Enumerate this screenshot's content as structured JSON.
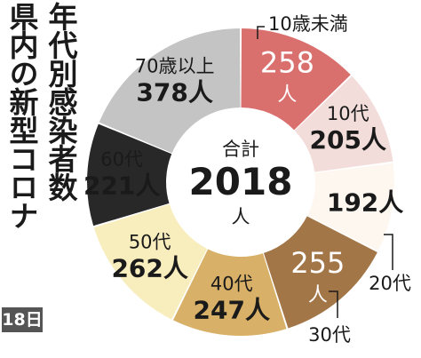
{
  "title_line1": "県内の新型コロナ",
  "title_line2": "年代別感染者数",
  "date_badge": "18日",
  "chart_data": {
    "type": "pie",
    "donut": true,
    "center_label": "合計",
    "center_value": "2018",
    "center_unit": "人",
    "total": 2018,
    "unit": "人",
    "slices": [
      {
        "label": "10歳未満",
        "value": 258,
        "color": "#d9706e"
      },
      {
        "label": "10代",
        "value": 205,
        "color": "#f3dddb"
      },
      {
        "label": "20代",
        "value": 192,
        "color": "#fdf7f0"
      },
      {
        "label": "30代",
        "value": 255,
        "color": "#a37648"
      },
      {
        "label": "40代",
        "value": 247,
        "color": "#d8b067"
      },
      {
        "label": "50代",
        "value": 262,
        "color": "#f8edbd"
      },
      {
        "label": "60代",
        "value": 221,
        "color": "#282828"
      },
      {
        "label": "70歳以上",
        "value": 378,
        "color": "#c4c4c4"
      }
    ]
  }
}
